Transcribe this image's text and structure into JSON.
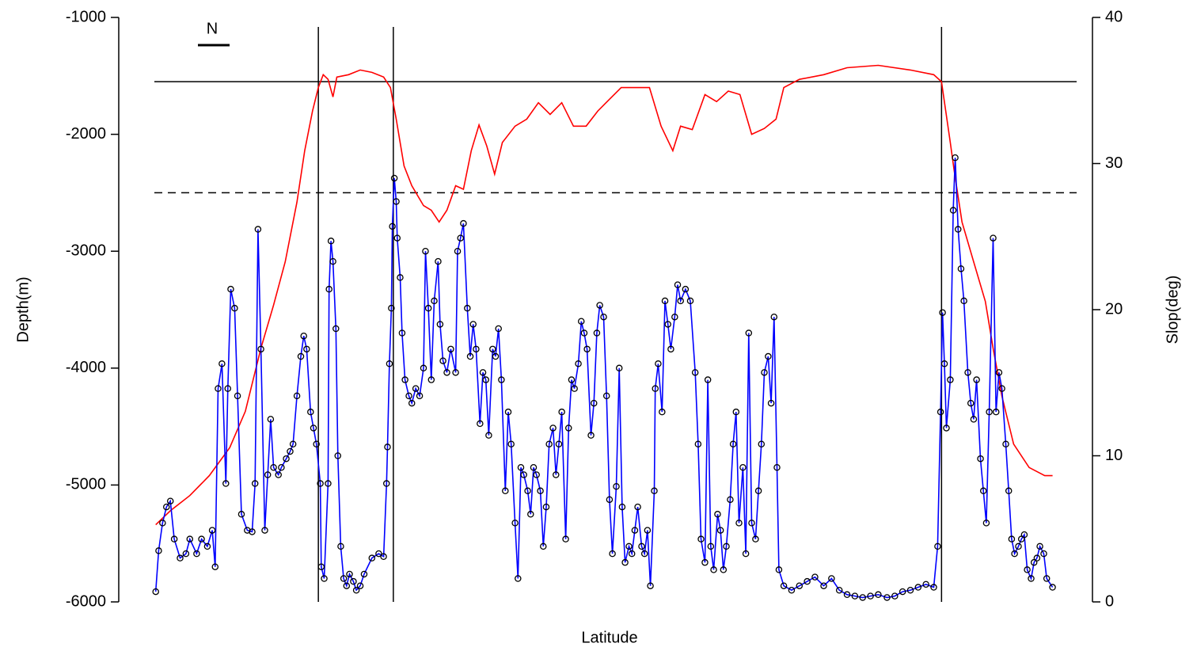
{
  "chart_data": {
    "type": "line",
    "x_label": "Latitude",
    "y_label": "Depth(m)",
    "y2_label": "Slop(deg)",
    "annotation": "N",
    "xlim": [
      0,
      100
    ],
    "ylim": [
      -6000,
      -1000
    ],
    "yticks": [
      -6000,
      -5000,
      -4000,
      -3000,
      -2000,
      -1000
    ],
    "y2lim": [
      0,
      40
    ],
    "y2ticks": [
      0,
      10,
      20,
      30,
      40
    ],
    "hlines": [
      {
        "value": -1550,
        "style": "solid"
      },
      {
        "value": -2500,
        "style": "dashed"
      }
    ],
    "vlines": [
      20.5,
      28.2,
      84.5
    ],
    "series": [
      {
        "color": "#ff0000",
        "axis": "y",
        "x": [
          3.8,
          5.3,
          7.3,
          9.3,
          11.4,
          13.0,
          14.6,
          15.9,
          17.1,
          18.3,
          19.1,
          19.9,
          20.5,
          21.0,
          21.5,
          22.0,
          22.4,
          23.6,
          24.8,
          26.0,
          27.2,
          27.9,
          28.5,
          29.3,
          30.1,
          31.3,
          32.1,
          32.9,
          33.7,
          34.6,
          35.4,
          36.2,
          37.0,
          37.8,
          38.6,
          39.4,
          40.7,
          41.9,
          43.1,
          44.3,
          45.5,
          46.7,
          48.0,
          49.2,
          50.4,
          51.6,
          52.8,
          54.5,
          55.7,
          56.9,
          57.7,
          58.9,
          60.2,
          61.4,
          62.6,
          63.8,
          65.0,
          66.3,
          67.5,
          68.3,
          69.9,
          72.4,
          74.8,
          78.0,
          81.3,
          83.7,
          84.5,
          85.4,
          85.8,
          86.6,
          87.8,
          89.0,
          89.8,
          90.7,
          91.9,
          93.5,
          95.1,
          95.9
        ],
        "values": [
          -5340,
          -5220,
          -5090,
          -4920,
          -4680,
          -4370,
          -3830,
          -3460,
          -3090,
          -2580,
          -2140,
          -1800,
          -1600,
          -1490,
          -1530,
          -1680,
          -1510,
          -1490,
          -1450,
          -1470,
          -1510,
          -1600,
          -1870,
          -2270,
          -2440,
          -2610,
          -2650,
          -2750,
          -2650,
          -2440,
          -2470,
          -2140,
          -1920,
          -2100,
          -2340,
          -2070,
          -1930,
          -1870,
          -1730,
          -1830,
          -1730,
          -1930,
          -1930,
          -1800,
          -1700,
          -1600,
          -1600,
          -1600,
          -1930,
          -2140,
          -1930,
          -1960,
          -1660,
          -1720,
          -1630,
          -1660,
          -2000,
          -1950,
          -1870,
          -1600,
          -1530,
          -1490,
          -1430,
          -1410,
          -1450,
          -1490,
          -1550,
          -2070,
          -2310,
          -2750,
          -3090,
          -3430,
          -3830,
          -4240,
          -4650,
          -4850,
          -4920,
          -4920
        ]
      },
      {
        "color": "#0000ff",
        "axis": "y2",
        "marker": "circle",
        "x": [
          3.8,
          4.1,
          4.5,
          4.9,
          5.3,
          5.7,
          6.3,
          6.9,
          7.3,
          8.0,
          8.5,
          9.1,
          9.6,
          9.9,
          10.2,
          10.6,
          11.0,
          11.2,
          11.5,
          11.9,
          12.2,
          12.6,
          13.2,
          13.7,
          14.0,
          14.3,
          14.6,
          15.0,
          15.3,
          15.6,
          15.9,
          16.4,
          16.7,
          17.2,
          17.6,
          17.9,
          18.3,
          18.7,
          19.0,
          19.3,
          19.7,
          20.0,
          20.3,
          20.7,
          20.8,
          21.1,
          21.5,
          21.6,
          21.8,
          22.0,
          22.3,
          22.5,
          22.8,
          23.1,
          23.4,
          23.7,
          24.1,
          24.4,
          24.8,
          25.2,
          26.0,
          26.7,
          27.2,
          27.5,
          27.6,
          27.8,
          28.0,
          28.1,
          28.3,
          28.5,
          28.6,
          28.9,
          29.1,
          29.4,
          29.8,
          30.1,
          30.5,
          30.9,
          31.3,
          31.5,
          31.8,
          32.1,
          32.4,
          32.8,
          33.0,
          33.3,
          33.7,
          34.1,
          34.6,
          34.8,
          35.1,
          35.4,
          35.8,
          36.1,
          36.4,
          36.7,
          37.1,
          37.4,
          37.7,
          38.0,
          38.4,
          38.7,
          39.0,
          39.3,
          39.7,
          40.0,
          40.3,
          40.7,
          41.0,
          41.3,
          41.6,
          42.0,
          42.3,
          42.6,
          42.9,
          43.3,
          43.6,
          43.9,
          44.2,
          44.6,
          44.9,
          45.2,
          45.5,
          45.9,
          46.2,
          46.5,
          46.8,
          47.2,
          47.5,
          47.8,
          48.1,
          48.5,
          48.8,
          49.1,
          49.4,
          49.8,
          50.1,
          50.4,
          50.7,
          51.1,
          51.4,
          51.7,
          52.0,
          52.4,
          52.7,
          53.0,
          53.3,
          53.7,
          54.0,
          54.3,
          54.6,
          55.0,
          55.1,
          55.4,
          55.8,
          56.1,
          56.4,
          56.7,
          57.1,
          57.4,
          57.7,
          58.2,
          58.7,
          59.2,
          59.5,
          59.8,
          60.2,
          60.5,
          60.8,
          61.1,
          61.5,
          61.8,
          62.1,
          62.4,
          62.8,
          63.1,
          63.4,
          63.7,
          64.1,
          64.4,
          64.7,
          65.0,
          65.4,
          65.7,
          66.0,
          66.3,
          66.7,
          67.0,
          67.3,
          67.6,
          67.8,
          68.3,
          69.1,
          69.9,
          70.7,
          71.5,
          72.4,
          73.2,
          74.0,
          74.8,
          75.6,
          76.4,
          77.2,
          78.0,
          78.9,
          79.7,
          80.5,
          81.3,
          82.1,
          82.9,
          83.7,
          84.1,
          84.4,
          84.6,
          84.8,
          85.0,
          85.4,
          85.7,
          85.9,
          86.2,
          86.5,
          86.8,
          87.2,
          87.5,
          87.8,
          88.1,
          88.5,
          88.8,
          89.1,
          89.4,
          89.8,
          90.1,
          90.4,
          90.7,
          91.1,
          91.4,
          91.7,
          92.0,
          92.4,
          92.7,
          93.0,
          93.3,
          93.7,
          94.0,
          94.3,
          94.6,
          95.0,
          95.3,
          95.9
        ],
        "values": [
          0.7,
          3.5,
          5.4,
          6.5,
          6.9,
          4.3,
          3.0,
          3.3,
          4.3,
          3.3,
          4.3,
          3.8,
          4.9,
          2.4,
          14.6,
          16.3,
          8.1,
          14.6,
          21.4,
          20.1,
          14.1,
          6.0,
          4.9,
          4.8,
          8.1,
          25.5,
          17.3,
          4.9,
          8.7,
          12.5,
          9.2,
          8.7,
          9.2,
          9.8,
          10.3,
          10.8,
          14.1,
          16.8,
          18.2,
          17.3,
          13.0,
          11.9,
          10.8,
          8.1,
          2.4,
          1.6,
          8.1,
          21.4,
          24.7,
          23.3,
          18.7,
          10.0,
          3.8,
          1.6,
          1.1,
          1.9,
          1.4,
          0.8,
          1.1,
          1.9,
          3.0,
          3.3,
          3.1,
          8.1,
          10.6,
          16.3,
          20.1,
          25.7,
          29.0,
          27.4,
          24.9,
          22.2,
          18.4,
          15.2,
          14.1,
          13.6,
          14.6,
          14.1,
          16.0,
          24.0,
          20.1,
          15.2,
          20.6,
          23.3,
          19.0,
          16.5,
          15.7,
          17.3,
          15.7,
          24.0,
          24.9,
          25.9,
          20.1,
          16.8,
          19.0,
          17.3,
          12.2,
          15.7,
          15.2,
          11.4,
          17.3,
          16.8,
          18.7,
          15.2,
          7.6,
          13.0,
          10.8,
          5.4,
          1.6,
          9.2,
          8.7,
          7.6,
          6.0,
          9.2,
          8.7,
          7.6,
          3.8,
          6.5,
          10.8,
          11.9,
          8.7,
          10.8,
          13.0,
          4.3,
          11.9,
          15.2,
          14.6,
          16.3,
          19.2,
          18.4,
          17.3,
          11.4,
          13.6,
          18.4,
          20.3,
          19.5,
          14.1,
          7.0,
          3.3,
          7.9,
          16.0,
          6.5,
          2.7,
          3.8,
          3.3,
          4.9,
          6.5,
          3.8,
          3.3,
          4.9,
          1.1,
          7.6,
          14.6,
          16.3,
          13.0,
          20.6,
          19.0,
          17.3,
          19.5,
          21.7,
          20.6,
          21.4,
          20.6,
          15.7,
          10.8,
          4.3,
          2.7,
          15.2,
          3.8,
          2.2,
          6.0,
          4.9,
          2.2,
          3.8,
          7.0,
          10.8,
          13.0,
          5.4,
          9.2,
          3.3,
          18.4,
          5.4,
          4.3,
          7.6,
          10.8,
          15.7,
          16.8,
          13.6,
          19.5,
          9.2,
          2.2,
          1.1,
          0.8,
          1.1,
          1.4,
          1.7,
          1.1,
          1.6,
          0.8,
          0.5,
          0.4,
          0.3,
          0.4,
          0.5,
          0.3,
          0.4,
          0.7,
          0.8,
          1.0,
          1.2,
          1.0,
          3.8,
          13.0,
          19.8,
          16.3,
          11.9,
          15.2,
          26.8,
          30.4,
          25.5,
          22.8,
          20.6,
          15.7,
          13.6,
          12.5,
          15.2,
          9.8,
          7.6,
          5.4,
          13.0,
          24.9,
          13.0,
          15.7,
          14.6,
          10.8,
          7.6,
          4.3,
          3.3,
          3.8,
          4.3,
          4.6,
          2.2,
          1.6,
          2.7,
          3.0,
          3.8,
          3.3,
          1.6,
          1.0
        ]
      }
    ]
  }
}
